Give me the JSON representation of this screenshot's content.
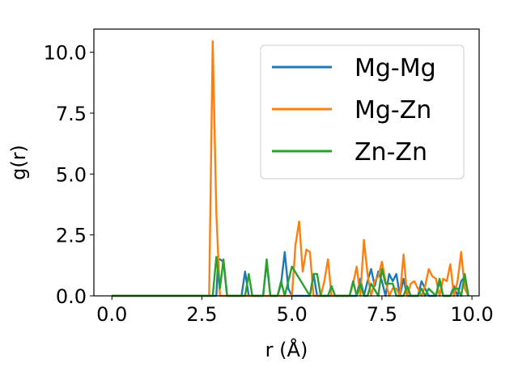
{
  "chart_data": {
    "type": "line",
    "title": "",
    "xlabel": "r (Å)",
    "ylabel": "g(r)",
    "xlim": [
      -0.5,
      10.2
    ],
    "ylim": [
      0,
      10.95
    ],
    "xticks": [
      0.0,
      2.5,
      5.0,
      7.5,
      10.0
    ],
    "xtick_labels": [
      "0.0",
      "2.5",
      "5.0",
      "7.5",
      "10.0"
    ],
    "yticks": [
      0.0,
      2.5,
      5.0,
      7.5,
      10.0
    ],
    "ytick_labels": [
      "0.0",
      "2.5",
      "5.0",
      "7.5",
      "10.0"
    ],
    "grid": false,
    "legend_position": "top-right",
    "series": [
      {
        "name": "Mg-Mg",
        "color": "#1f77b4",
        "x": [
          0.0,
          2.5,
          2.9,
          2.95,
          3.0,
          3.1,
          3.2,
          3.6,
          3.7,
          3.8,
          4.2,
          4.3,
          4.4,
          4.6,
          4.7,
          4.8,
          4.9,
          5.0,
          5.5,
          5.6,
          5.7,
          6.8,
          6.9,
          7.0,
          7.1,
          7.2,
          7.3,
          7.4,
          7.5,
          7.6,
          7.7,
          7.8,
          7.9,
          8.0,
          8.1,
          8.2,
          8.5,
          8.6,
          8.7,
          8.8,
          9.0,
          9.1,
          9.2,
          9.4,
          9.5,
          9.6,
          9.7,
          9.8,
          9.9
        ],
        "y": [
          0.0,
          0.0,
          0.0,
          1.5,
          1.5,
          1.4,
          0.0,
          0.0,
          1.0,
          0.0,
          0.0,
          1.4,
          0.0,
          0.0,
          0.5,
          1.8,
          0.3,
          0.0,
          0.0,
          0.9,
          0.0,
          0.0,
          0.7,
          0.0,
          0.6,
          1.1,
          0.4,
          1.0,
          0.6,
          0.0,
          0.9,
          0.6,
          0.9,
          0.0,
          0.7,
          0.0,
          0.0,
          0.6,
          0.3,
          0.0,
          0.0,
          0.6,
          0.0,
          0.0,
          0.4,
          0.0,
          0.6,
          0.8,
          0.0
        ]
      },
      {
        "name": "Mg-Zn",
        "color": "#ff7f0e",
        "x": [
          0.0,
          2.5,
          2.7,
          2.8,
          2.9,
          3.0,
          5.0,
          5.1,
          5.2,
          5.3,
          5.4,
          5.5,
          5.6,
          5.8,
          5.9,
          6.0,
          6.1,
          6.6,
          6.7,
          6.8,
          6.9,
          7.0,
          7.1,
          7.2,
          7.3,
          7.4,
          7.5,
          7.6,
          7.7,
          7.8,
          7.9,
          8.0,
          8.1,
          8.2,
          8.3,
          8.4,
          8.6,
          8.7,
          8.8,
          8.9,
          9.0,
          9.1,
          9.2,
          9.3,
          9.4,
          9.5,
          9.6,
          9.7,
          9.8,
          9.9
        ],
        "y": [
          0.0,
          0.0,
          0.0,
          10.45,
          3.4,
          0.0,
          0.0,
          2.1,
          3.05,
          1.0,
          1.9,
          1.8,
          0.0,
          0.0,
          0.6,
          1.5,
          0.0,
          0.0,
          0.5,
          1.2,
          0.0,
          2.3,
          0.9,
          0.0,
          0.6,
          0.8,
          1.4,
          0.6,
          0.0,
          0.3,
          0.3,
          0.0,
          1.7,
          0.0,
          0.5,
          0.6,
          0.0,
          0.4,
          1.1,
          0.8,
          0.7,
          0.0,
          0.7,
          0.6,
          1.3,
          0.0,
          0.6,
          1.8,
          0.3,
          0.0
        ]
      },
      {
        "name": "Zn-Zn",
        "color": "#2ca02c",
        "x": [
          0.0,
          2.5,
          2.8,
          2.9,
          3.0,
          3.1,
          3.2,
          3.3,
          3.7,
          3.8,
          3.9,
          4.2,
          4.3,
          4.4,
          4.6,
          4.7,
          4.8,
          4.9,
          5.0,
          5.5,
          5.6,
          5.7,
          5.8,
          6.0,
          6.1,
          6.2,
          6.6,
          6.7,
          6.8,
          6.9,
          7.0,
          7.1,
          7.2,
          7.4,
          7.5,
          7.6,
          7.7,
          7.8,
          7.9,
          8.1,
          8.2,
          8.3,
          8.5,
          8.6,
          8.7,
          8.8,
          9.0,
          9.1,
          9.2,
          9.4,
          9.5,
          9.6,
          9.7,
          9.8,
          9.9
        ],
        "y": [
          0.0,
          0.0,
          0.0,
          1.6,
          0.3,
          1.5,
          0.0,
          0.0,
          0.0,
          0.9,
          0.0,
          0.0,
          1.5,
          0.0,
          0.0,
          0.6,
          0.0,
          0.6,
          1.2,
          0.0,
          0.9,
          0.9,
          0.0,
          0.0,
          0.4,
          0.0,
          0.0,
          0.6,
          0.0,
          0.5,
          0.0,
          0.0,
          0.5,
          0.0,
          1.1,
          0.5,
          0.5,
          0.5,
          0.0,
          0.0,
          0.4,
          0.0,
          0.0,
          0.3,
          0.0,
          0.3,
          0.0,
          0.7,
          0.0,
          0.0,
          0.3,
          0.3,
          0.0,
          0.9,
          0.0
        ]
      }
    ]
  }
}
